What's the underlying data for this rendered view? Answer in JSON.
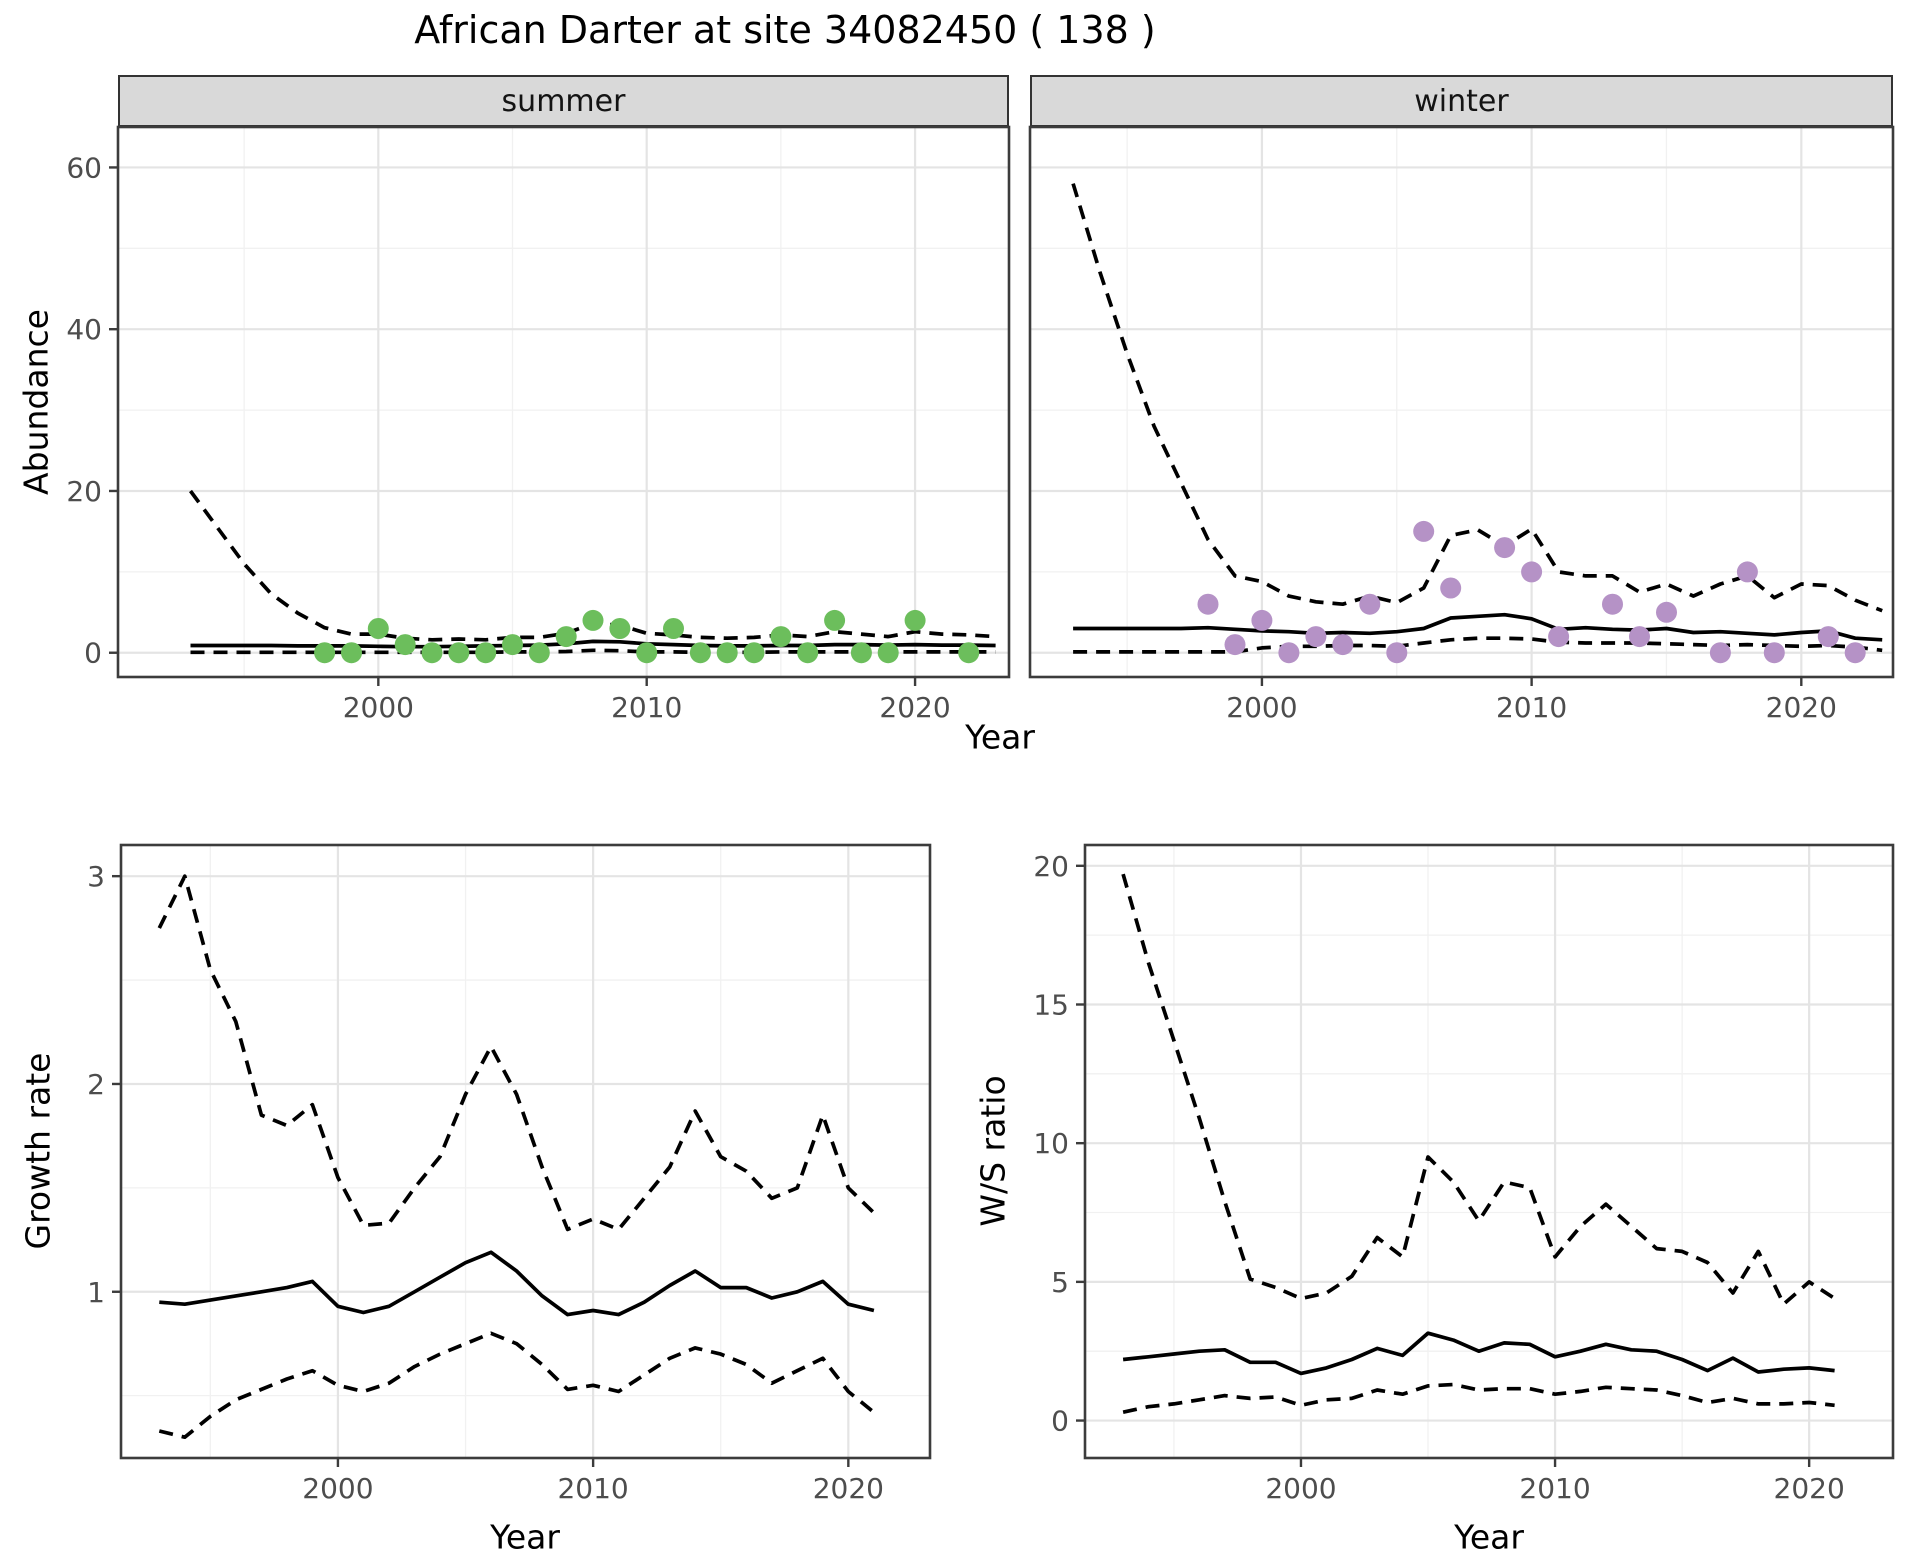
{
  "title": "African Darter at site 34082450 ( 138 )",
  "top_row": {
    "shared_xlabel": "Year",
    "ylabel": "Abundance"
  },
  "colors": {
    "summer_points": "#6cbe5c",
    "winter_points": "#b592c6",
    "line": "#000000",
    "strip_bg": "#d9d9d9",
    "panel_border": "#3c3c3c",
    "grid_major": "#e4e4e4",
    "grid_minor": "#f1f1f1",
    "tick_text": "#4d4d4d"
  },
  "chart_data": [
    {
      "id": "summer",
      "type": "line",
      "facet": "summer",
      "xlabel": "Year",
      "ylabel": "Abundance",
      "x_domain": [
        1990.3,
        2023.5
      ],
      "y_domain": [
        -3,
        65
      ],
      "x_ticks": {
        "values": [
          2000,
          2010,
          2020
        ],
        "labels": [
          "2000",
          "2010",
          "2020"
        ]
      },
      "y_ticks": {
        "values": [
          0,
          20,
          40,
          60
        ],
        "labels": [
          "0",
          "20",
          "40",
          "60"
        ]
      },
      "x_minor": [
        1995,
        2005,
        2015
      ],
      "y_minor": [
        10,
        30,
        50
      ],
      "show_y_tick_labels": true,
      "series": [
        {
          "name": "ci-upper",
          "style": "dashed",
          "x": [
            1993,
            1994,
            1995,
            1996,
            1997,
            1998,
            1999,
            2000,
            2001,
            2002,
            2003,
            2004,
            2005,
            2006,
            2007,
            2008,
            2009,
            2010,
            2011,
            2012,
            2013,
            2014,
            2015,
            2016,
            2017,
            2018,
            2019,
            2020,
            2021,
            2022,
            2023
          ],
          "y": [
            20,
            15.5,
            11,
            7.3,
            4.9,
            3.1,
            2.3,
            2.3,
            1.8,
            1.6,
            1.7,
            1.6,
            1.9,
            1.9,
            2.4,
            3.6,
            3.4,
            2.4,
            2.2,
            1.9,
            1.8,
            1.9,
            2.2,
            2.0,
            2.6,
            2.3,
            2.0,
            2.6,
            2.3,
            2.2,
            2.0
          ]
        },
        {
          "name": "ci-lower",
          "style": "dashed",
          "x": [
            1993,
            1994,
            1995,
            1996,
            1997,
            1998,
            1999,
            2000,
            2001,
            2002,
            2003,
            2004,
            2005,
            2006,
            2007,
            2008,
            2009,
            2010,
            2011,
            2012,
            2013,
            2014,
            2015,
            2016,
            2017,
            2018,
            2019,
            2020,
            2021,
            2022,
            2023
          ],
          "y": [
            0.05,
            0.05,
            0.05,
            0.05,
            0.05,
            0.05,
            0.05,
            0.05,
            0.05,
            0.05,
            0.05,
            0.05,
            0.1,
            0.1,
            0.15,
            0.3,
            0.25,
            0.1,
            0.1,
            0.05,
            0.05,
            0.05,
            0.1,
            0.1,
            0.1,
            0.1,
            0.1,
            0.1,
            0.1,
            0.1,
            0.1
          ]
        },
        {
          "name": "fitted-median",
          "style": "solid",
          "x": [
            1993,
            1994,
            1995,
            1996,
            1997,
            1998,
            1999,
            2000,
            2001,
            2002,
            2003,
            2004,
            2005,
            2006,
            2007,
            2008,
            2009,
            2010,
            2011,
            2012,
            2013,
            2014,
            2015,
            2016,
            2017,
            2018,
            2019,
            2020,
            2021,
            2022,
            2023
          ],
          "y": [
            0.9,
            0.9,
            0.9,
            0.9,
            0.85,
            0.85,
            0.85,
            0.8,
            0.75,
            0.75,
            0.8,
            0.85,
            0.9,
            0.95,
            1.1,
            1.4,
            1.35,
            1.1,
            1.0,
            0.9,
            0.85,
            0.85,
            0.9,
            0.9,
            1.0,
            1.0,
            0.95,
            1.0,
            0.95,
            0.95,
            0.9
          ]
        }
      ],
      "points": {
        "name": "observed-counts",
        "color": "#6cbe5c",
        "x": [
          1998,
          1999,
          2000,
          2001,
          2002,
          2003,
          2004,
          2005,
          2006,
          2007,
          2008,
          2009,
          2010,
          2011,
          2012,
          2013,
          2014,
          2015,
          2016,
          2017,
          2018,
          2019,
          2020,
          2022
        ],
        "y": [
          0,
          0,
          3,
          1,
          0,
          0,
          0,
          1,
          0,
          2,
          4,
          3,
          0,
          3,
          0,
          0,
          0,
          2,
          0,
          4,
          0,
          0,
          4,
          0
        ]
      }
    },
    {
      "id": "winter",
      "type": "line",
      "facet": "winter",
      "xlabel": "Year",
      "ylabel": "Abundance",
      "x_domain": [
        1991.4,
        2023.4
      ],
      "y_domain": [
        -3,
        65
      ],
      "x_ticks": {
        "values": [
          2000,
          2010,
          2020
        ],
        "labels": [
          "2000",
          "2010",
          "2020"
        ]
      },
      "y_ticks": {
        "values": [
          0,
          20,
          40,
          60
        ],
        "labels": [
          "0",
          "20",
          "40",
          "60"
        ]
      },
      "x_minor": [
        1995,
        2005,
        2015
      ],
      "y_minor": [
        10,
        30,
        50
      ],
      "show_y_tick_labels": false,
      "series": [
        {
          "name": "ci-upper",
          "style": "dashed",
          "x": [
            1993,
            1994,
            1995,
            1996,
            1997,
            1998,
            1999,
            2000,
            2001,
            2002,
            2003,
            2004,
            2005,
            2006,
            2007,
            2008,
            2009,
            2010,
            2011,
            2012,
            2013,
            2014,
            2015,
            2016,
            2017,
            2018,
            2019,
            2020,
            2021,
            2022,
            2023
          ],
          "y": [
            58,
            47,
            37,
            28,
            21,
            14,
            9.5,
            8.8,
            7.0,
            6.3,
            6.0,
            7.0,
            6.2,
            8.0,
            14.5,
            15.2,
            13.2,
            15.3,
            10.0,
            9.5,
            9.5,
            7.5,
            8.5,
            7.0,
            8.5,
            9.5,
            6.8,
            8.5,
            8.3,
            6.5,
            5.2
          ]
        },
        {
          "name": "ci-lower",
          "style": "dashed",
          "x": [
            1993,
            1994,
            1995,
            1996,
            1997,
            1998,
            1999,
            2000,
            2001,
            2002,
            2003,
            2004,
            2005,
            2006,
            2007,
            2008,
            2009,
            2010,
            2011,
            2012,
            2013,
            2014,
            2015,
            2016,
            2017,
            2018,
            2019,
            2020,
            2021,
            2022,
            2023
          ],
          "y": [
            0.1,
            0.1,
            0.1,
            0.1,
            0.1,
            0.1,
            0.1,
            0.6,
            0.8,
            0.8,
            0.9,
            0.9,
            0.8,
            1.2,
            1.6,
            1.8,
            1.8,
            1.7,
            1.3,
            1.2,
            1.2,
            1.2,
            1.1,
            1.0,
            0.9,
            1.0,
            0.9,
            0.8,
            0.9,
            0.7,
            0.3
          ]
        },
        {
          "name": "fitted-median",
          "style": "solid",
          "x": [
            1993,
            1994,
            1995,
            1996,
            1997,
            1998,
            1999,
            2000,
            2001,
            2002,
            2003,
            2004,
            2005,
            2006,
            2007,
            2008,
            2009,
            2010,
            2011,
            2012,
            2013,
            2014,
            2015,
            2016,
            2017,
            2018,
            2019,
            2020,
            2021,
            2022,
            2023
          ],
          "y": [
            3,
            3,
            3,
            3,
            3,
            3.1,
            2.9,
            2.7,
            2.6,
            2.4,
            2.5,
            2.4,
            2.6,
            3.0,
            4.3,
            4.5,
            4.7,
            4.2,
            2.9,
            3.1,
            2.9,
            2.8,
            3.0,
            2.5,
            2.6,
            2.4,
            2.2,
            2.5,
            2.7,
            1.8,
            1.6
          ]
        }
      ],
      "points": {
        "name": "observed-counts",
        "color": "#b592c6",
        "x": [
          1998,
          1999,
          2000,
          2001,
          2002,
          2003,
          2004,
          2005,
          2006,
          2007,
          2009,
          2010,
          2011,
          2013,
          2014,
          2015,
          2017,
          2018,
          2019,
          2021,
          2022
        ],
        "y": [
          6,
          1,
          4,
          0,
          2,
          1,
          6,
          0,
          15,
          8,
          13,
          10,
          2,
          6,
          2,
          5,
          0,
          10,
          0,
          2,
          0
        ]
      }
    },
    {
      "id": "growth",
      "type": "line",
      "facet": "",
      "xlabel": "Year",
      "ylabel": "Growth rate",
      "x_domain": [
        1991.5,
        2023.2
      ],
      "y_domain": [
        0.2,
        3.15
      ],
      "x_ticks": {
        "values": [
          2000,
          2010,
          2020
        ],
        "labels": [
          "2000",
          "2010",
          "2020"
        ]
      },
      "y_ticks": {
        "values": [
          1,
          2,
          3
        ],
        "labels": [
          "1",
          "2",
          "3"
        ]
      },
      "x_minor": [
        1995,
        2005,
        2015
      ],
      "y_minor": [
        0.5,
        1.5,
        2.5
      ],
      "show_y_tick_labels": true,
      "series": [
        {
          "name": "ci-upper",
          "style": "dashed",
          "x": [
            1993,
            1994,
            1995,
            1996,
            1997,
            1998,
            1999,
            2000,
            2001,
            2002,
            2003,
            2004,
            2005,
            2006,
            2007,
            2008,
            2009,
            2010,
            2011,
            2012,
            2013,
            2014,
            2015,
            2016,
            2017,
            2018,
            2019,
            2020,
            2021
          ],
          "y": [
            2.75,
            3.0,
            2.55,
            2.3,
            1.85,
            1.8,
            1.9,
            1.55,
            1.32,
            1.33,
            1.5,
            1.65,
            1.95,
            2.18,
            1.95,
            1.6,
            1.3,
            1.35,
            1.3,
            1.45,
            1.6,
            1.87,
            1.65,
            1.58,
            1.45,
            1.5,
            1.85,
            1.5,
            1.38
          ]
        },
        {
          "name": "ci-lower",
          "style": "dashed",
          "x": [
            1993,
            1994,
            1995,
            1996,
            1997,
            1998,
            1999,
            2000,
            2001,
            2002,
            2003,
            2004,
            2005,
            2006,
            2007,
            2008,
            2009,
            2010,
            2011,
            2012,
            2013,
            2014,
            2015,
            2016,
            2017,
            2018,
            2019,
            2020,
            2021
          ],
          "y": [
            0.33,
            0.3,
            0.4,
            0.48,
            0.53,
            0.58,
            0.62,
            0.55,
            0.52,
            0.56,
            0.64,
            0.7,
            0.75,
            0.8,
            0.75,
            0.65,
            0.53,
            0.55,
            0.52,
            0.6,
            0.68,
            0.73,
            0.7,
            0.65,
            0.56,
            0.62,
            0.68,
            0.52,
            0.42
          ]
        },
        {
          "name": "median",
          "style": "solid",
          "x": [
            1993,
            1994,
            1995,
            1996,
            1997,
            1998,
            1999,
            2000,
            2001,
            2002,
            2003,
            2004,
            2005,
            2006,
            2007,
            2008,
            2009,
            2010,
            2011,
            2012,
            2013,
            2014,
            2015,
            2016,
            2017,
            2018,
            2019,
            2020,
            2021
          ],
          "y": [
            0.95,
            0.94,
            0.96,
            0.98,
            1.0,
            1.02,
            1.05,
            0.93,
            0.9,
            0.93,
            1.0,
            1.07,
            1.14,
            1.19,
            1.1,
            0.98,
            0.89,
            0.91,
            0.89,
            0.95,
            1.03,
            1.1,
            1.02,
            1.02,
            0.97,
            1.0,
            1.05,
            0.94,
            0.91
          ]
        }
      ],
      "points": null
    },
    {
      "id": "ws",
      "type": "line",
      "facet": "",
      "xlabel": "Year",
      "ylabel": "W/S ratio",
      "x_domain": [
        1991.5,
        2023.3
      ],
      "y_domain": [
        -1.35,
        20.75
      ],
      "x_ticks": {
        "values": [
          2000,
          2010,
          2020
        ],
        "labels": [
          "2000",
          "2010",
          "2020"
        ]
      },
      "y_ticks": {
        "values": [
          0,
          5,
          10,
          15,
          20
        ],
        "labels": [
          "0",
          "5",
          "10",
          "15",
          "20"
        ]
      },
      "x_minor": [
        1995,
        2005,
        2015
      ],
      "y_minor": [
        2.5,
        7.5,
        12.5,
        17.5
      ],
      "show_y_tick_labels": true,
      "series": [
        {
          "name": "ci-upper",
          "style": "dashed",
          "x": [
            1993,
            1994,
            1995,
            1996,
            1997,
            1998,
            1999,
            2000,
            2001,
            2002,
            2003,
            2004,
            2005,
            2006,
            2007,
            2008,
            2009,
            2010,
            2011,
            2012,
            2013,
            2014,
            2015,
            2016,
            2017,
            2018,
            2019,
            2020,
            2021
          ],
          "y": [
            19.7,
            16.5,
            13.7,
            10.9,
            7.9,
            5.1,
            4.8,
            4.4,
            4.6,
            5.2,
            6.6,
            5.9,
            9.5,
            8.6,
            7.2,
            8.6,
            8.4,
            5.9,
            7.0,
            7.8,
            7.0,
            6.2,
            6.1,
            5.7,
            4.6,
            6.1,
            4.2,
            5.0,
            4.4
          ]
        },
        {
          "name": "ci-lower",
          "style": "dashed",
          "x": [
            1993,
            1994,
            1995,
            1996,
            1997,
            1998,
            1999,
            2000,
            2001,
            2002,
            2003,
            2004,
            2005,
            2006,
            2007,
            2008,
            2009,
            2010,
            2011,
            2012,
            2013,
            2014,
            2015,
            2016,
            2017,
            2018,
            2019,
            2020,
            2021
          ],
          "y": [
            0.3,
            0.5,
            0.6,
            0.75,
            0.9,
            0.8,
            0.85,
            0.55,
            0.75,
            0.8,
            1.1,
            0.95,
            1.25,
            1.3,
            1.1,
            1.15,
            1.15,
            0.95,
            1.05,
            1.2,
            1.15,
            1.1,
            0.9,
            0.65,
            0.8,
            0.6,
            0.6,
            0.65,
            0.55
          ]
        },
        {
          "name": "median",
          "style": "solid",
          "x": [
            1993,
            1994,
            1995,
            1996,
            1997,
            1998,
            1999,
            2000,
            2001,
            2002,
            2003,
            2004,
            2005,
            2006,
            2007,
            2008,
            2009,
            2010,
            2011,
            2012,
            2013,
            2014,
            2015,
            2016,
            2017,
            2018,
            2019,
            2020,
            2021
          ],
          "y": [
            2.2,
            2.3,
            2.4,
            2.5,
            2.55,
            2.1,
            2.1,
            1.7,
            1.9,
            2.2,
            2.6,
            2.35,
            3.15,
            2.9,
            2.5,
            2.8,
            2.75,
            2.3,
            2.5,
            2.75,
            2.55,
            2.5,
            2.2,
            1.8,
            2.25,
            1.75,
            1.85,
            1.9,
            1.8
          ]
        }
      ],
      "points": null
    }
  ]
}
